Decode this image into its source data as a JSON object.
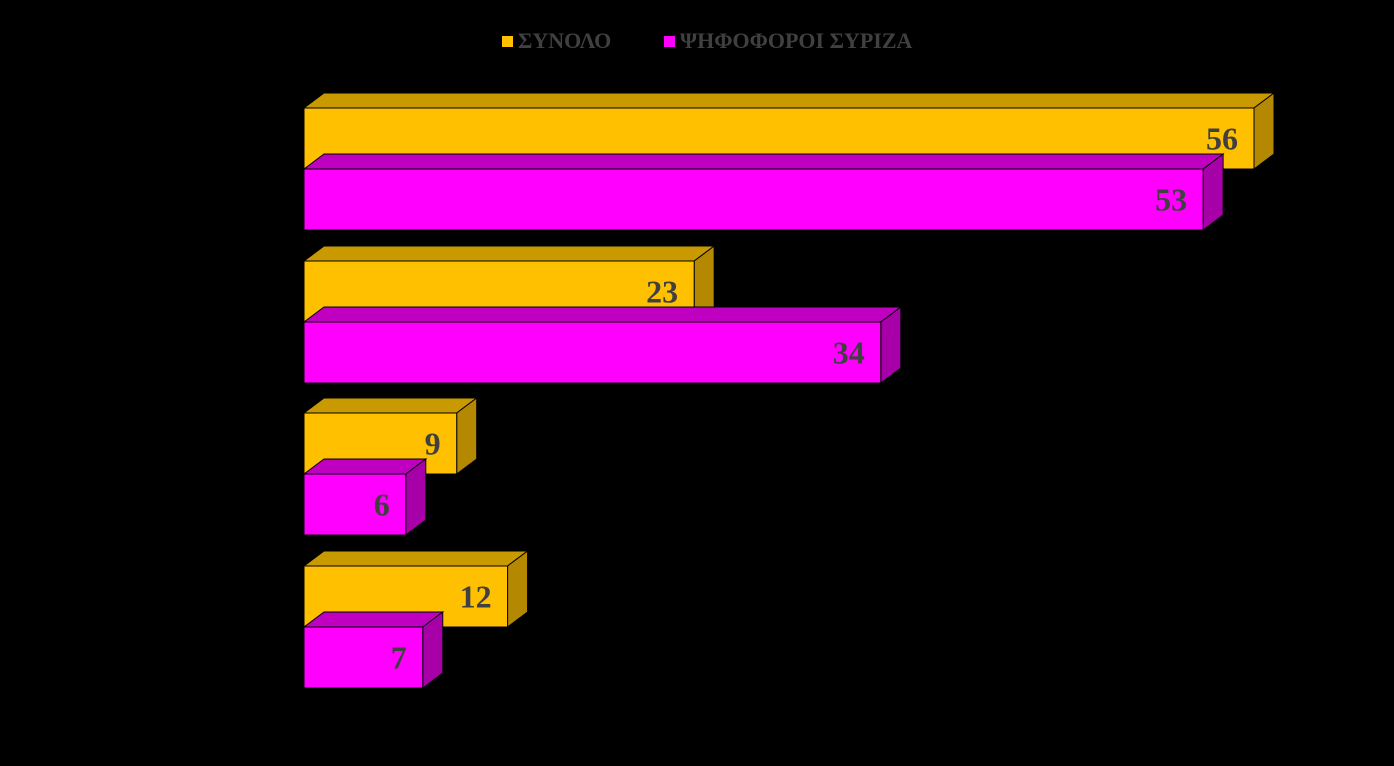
{
  "chart_data": {
    "type": "bar",
    "orientation": "horizontal",
    "three_d": true,
    "categories": [
      "",
      "",
      "",
      ""
    ],
    "series": [
      {
        "name": "ΣΥΝΟΛΟ",
        "color": "#FFC000",
        "values": [
          56,
          23,
          9,
          12
        ]
      },
      {
        "name": "ΨΗΦΟΦΟΡΟΙ ΣΥΡΙΖΑ",
        "color": "#FF00FF",
        "values": [
          53,
          34,
          6,
          7
        ]
      }
    ],
    "data_labels": true,
    "xlim": [
      0,
      56
    ],
    "grid": false,
    "legend": "top-center",
    "title": "",
    "xlabel": "",
    "ylabel": ""
  }
}
